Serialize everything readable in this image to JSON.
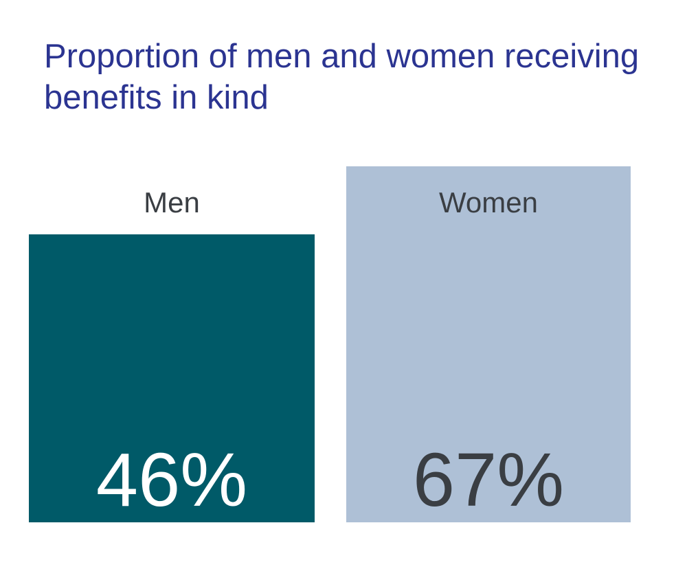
{
  "chart": {
    "title_line1": "Proportion of men and women receiving",
    "title_line2": "benefits in kind",
    "men": {
      "label": "Men",
      "value": 46,
      "value_label": "46%"
    },
    "women": {
      "label": "Women",
      "value": 67,
      "value_label": "67%"
    },
    "colors": {
      "background": "#ffffff",
      "title": "#2b3491",
      "men_bar": "#005a68",
      "women_bar": "#aec0d6",
      "category_label": "#3a3e43",
      "men_value": "#ffffff",
      "women_value": "#3a3e43"
    }
  },
  "chart_data": {
    "type": "bar",
    "title": "Proportion of men and women receiving benefits in kind",
    "categories": [
      "Men",
      "Women"
    ],
    "values": [
      46,
      67
    ],
    "value_labels": [
      "46%",
      "67%"
    ],
    "unit": "%",
    "xlabel": "",
    "ylabel": "",
    "ylim": [
      0,
      100
    ],
    "grid": false,
    "legend": false,
    "axes_shown": false,
    "bar_colors": [
      "#005a68",
      "#aec0d6"
    ],
    "category_label_positions": [
      "above-bar",
      "inside-bar-top"
    ],
    "value_label_positions": [
      "inside-bar-bottom",
      "inside-bar-bottom"
    ],
    "notes": "Stylized infographic: two wide bars, bottoms aligned; bar heights not strictly proportional to values"
  }
}
